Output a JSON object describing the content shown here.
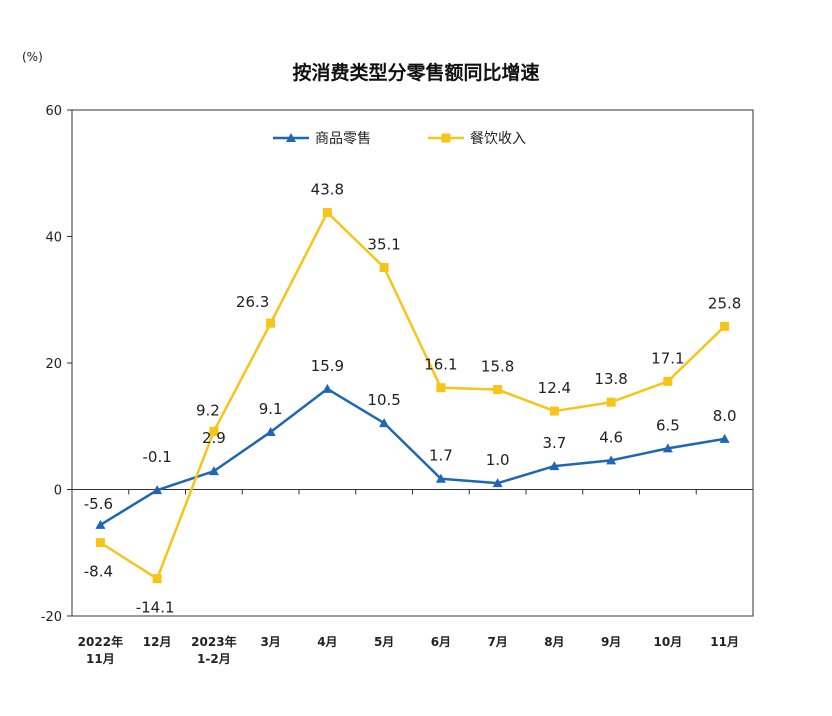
{
  "chart_data": {
    "type": "line",
    "title": "按消费类型分零售额同比增速",
    "unit_label": "(%)",
    "ylim": [
      -20,
      60
    ],
    "yticks": [
      -20,
      0,
      20,
      40,
      60
    ],
    "categories": [
      [
        "2022年",
        "11月"
      ],
      [
        "12月"
      ],
      [
        "2023年",
        "1-2月"
      ],
      [
        "3月"
      ],
      [
        "4月"
      ],
      [
        "5月"
      ],
      [
        "6月"
      ],
      [
        "7月"
      ],
      [
        "8月"
      ],
      [
        "9月"
      ],
      [
        "10月"
      ],
      [
        "11月"
      ]
    ],
    "series": [
      {
        "name": "商品零售",
        "color": "#1f66b5",
        "marker": "triangle",
        "values": [
          -5.6,
          -0.1,
          2.9,
          9.1,
          15.9,
          10.5,
          1.7,
          1.0,
          3.7,
          4.6,
          6.5,
          8.0
        ],
        "labels": [
          "-5.6",
          "-0.1",
          "2.9",
          "9.1",
          "15.9",
          "10.5",
          "1.7",
          "1.0",
          "3.7",
          "4.6",
          "6.5",
          "8.0"
        ]
      },
      {
        "name": "餐饮收入",
        "color": "#f5c518",
        "marker": "square",
        "values": [
          -8.4,
          -14.1,
          9.2,
          26.3,
          43.8,
          35.1,
          16.1,
          15.8,
          12.4,
          13.8,
          17.1,
          25.8
        ],
        "labels": [
          "-8.4",
          "-14.1",
          "9.2",
          "26.3",
          "43.8",
          "35.1",
          "16.1",
          "15.8",
          "12.4",
          "13.8",
          "17.1",
          "25.8"
        ]
      }
    ],
    "grid": false,
    "legend_position": "top-center"
  }
}
